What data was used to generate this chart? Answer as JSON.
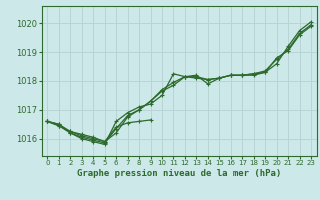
{
  "title": "Graphe pression niveau de la mer (hPa)",
  "bg_color": "#cce8e8",
  "grid_color": "#b8d4d4",
  "line_color": "#2d6a2d",
  "xlim": [
    -0.5,
    23.5
  ],
  "ylim": [
    1015.4,
    1020.6
  ],
  "yticks": [
    1016,
    1017,
    1018,
    1019,
    1020
  ],
  "xticks": [
    0,
    1,
    2,
    3,
    4,
    5,
    6,
    7,
    8,
    9,
    10,
    11,
    12,
    13,
    14,
    15,
    16,
    17,
    18,
    19,
    20,
    21,
    22,
    23
  ],
  "series": [
    {
      "x": [
        0,
        1,
        2,
        3,
        4,
        5,
        6,
        7,
        8,
        9,
        10,
        11,
        12,
        13,
        14,
        15,
        16,
        17,
        18,
        19,
        20,
        21,
        22,
        23
      ],
      "y": [
        1016.6,
        1016.5,
        1016.2,
        1016.0,
        1015.9,
        1015.8,
        1016.6,
        1016.9,
        1017.1,
        1017.2,
        1017.5,
        1018.25,
        1018.15,
        1018.2,
        1017.9,
        1018.1,
        1018.2,
        1018.2,
        1018.2,
        1018.3,
        1018.6,
        1019.2,
        1019.75,
        1020.05
      ]
    },
    {
      "x": [
        0,
        1,
        2,
        3,
        4,
        5,
        6,
        7,
        8,
        9,
        10,
        11,
        12,
        13,
        14,
        15,
        16,
        17,
        18,
        19,
        20,
        21,
        22,
        23
      ],
      "y": [
        1016.6,
        1016.45,
        1016.2,
        1016.05,
        1015.95,
        1015.85,
        1016.35,
        1016.8,
        1017.0,
        1017.3,
        1017.7,
        1017.95,
        1018.15,
        1018.15,
        1018.05,
        1018.1,
        1018.2,
        1018.2,
        1018.25,
        1018.35,
        1018.75,
        1019.1,
        1019.65,
        1019.95
      ]
    },
    {
      "x": [
        0,
        1,
        2,
        3,
        4,
        5,
        6,
        7,
        8,
        9,
        10,
        11,
        12,
        13,
        14,
        15,
        16,
        17,
        18,
        19,
        20,
        21,
        22,
        23
      ],
      "y": [
        1016.6,
        1016.45,
        1016.25,
        1016.1,
        1016.0,
        1015.9,
        1016.2,
        1016.75,
        1017.0,
        1017.3,
        1017.65,
        1017.85,
        1018.15,
        1018.1,
        1018.05,
        1018.1,
        1018.2,
        1018.2,
        1018.25,
        1018.3,
        1018.8,
        1019.05,
        1019.6,
        1019.9
      ]
    },
    {
      "x": [
        0,
        1,
        2,
        3,
        4,
        5,
        6,
        7,
        8,
        9
      ],
      "y": [
        1016.6,
        1016.5,
        1016.25,
        1016.15,
        1016.05,
        1015.9,
        1016.4,
        1016.55,
        1016.6,
        1016.65
      ]
    }
  ]
}
